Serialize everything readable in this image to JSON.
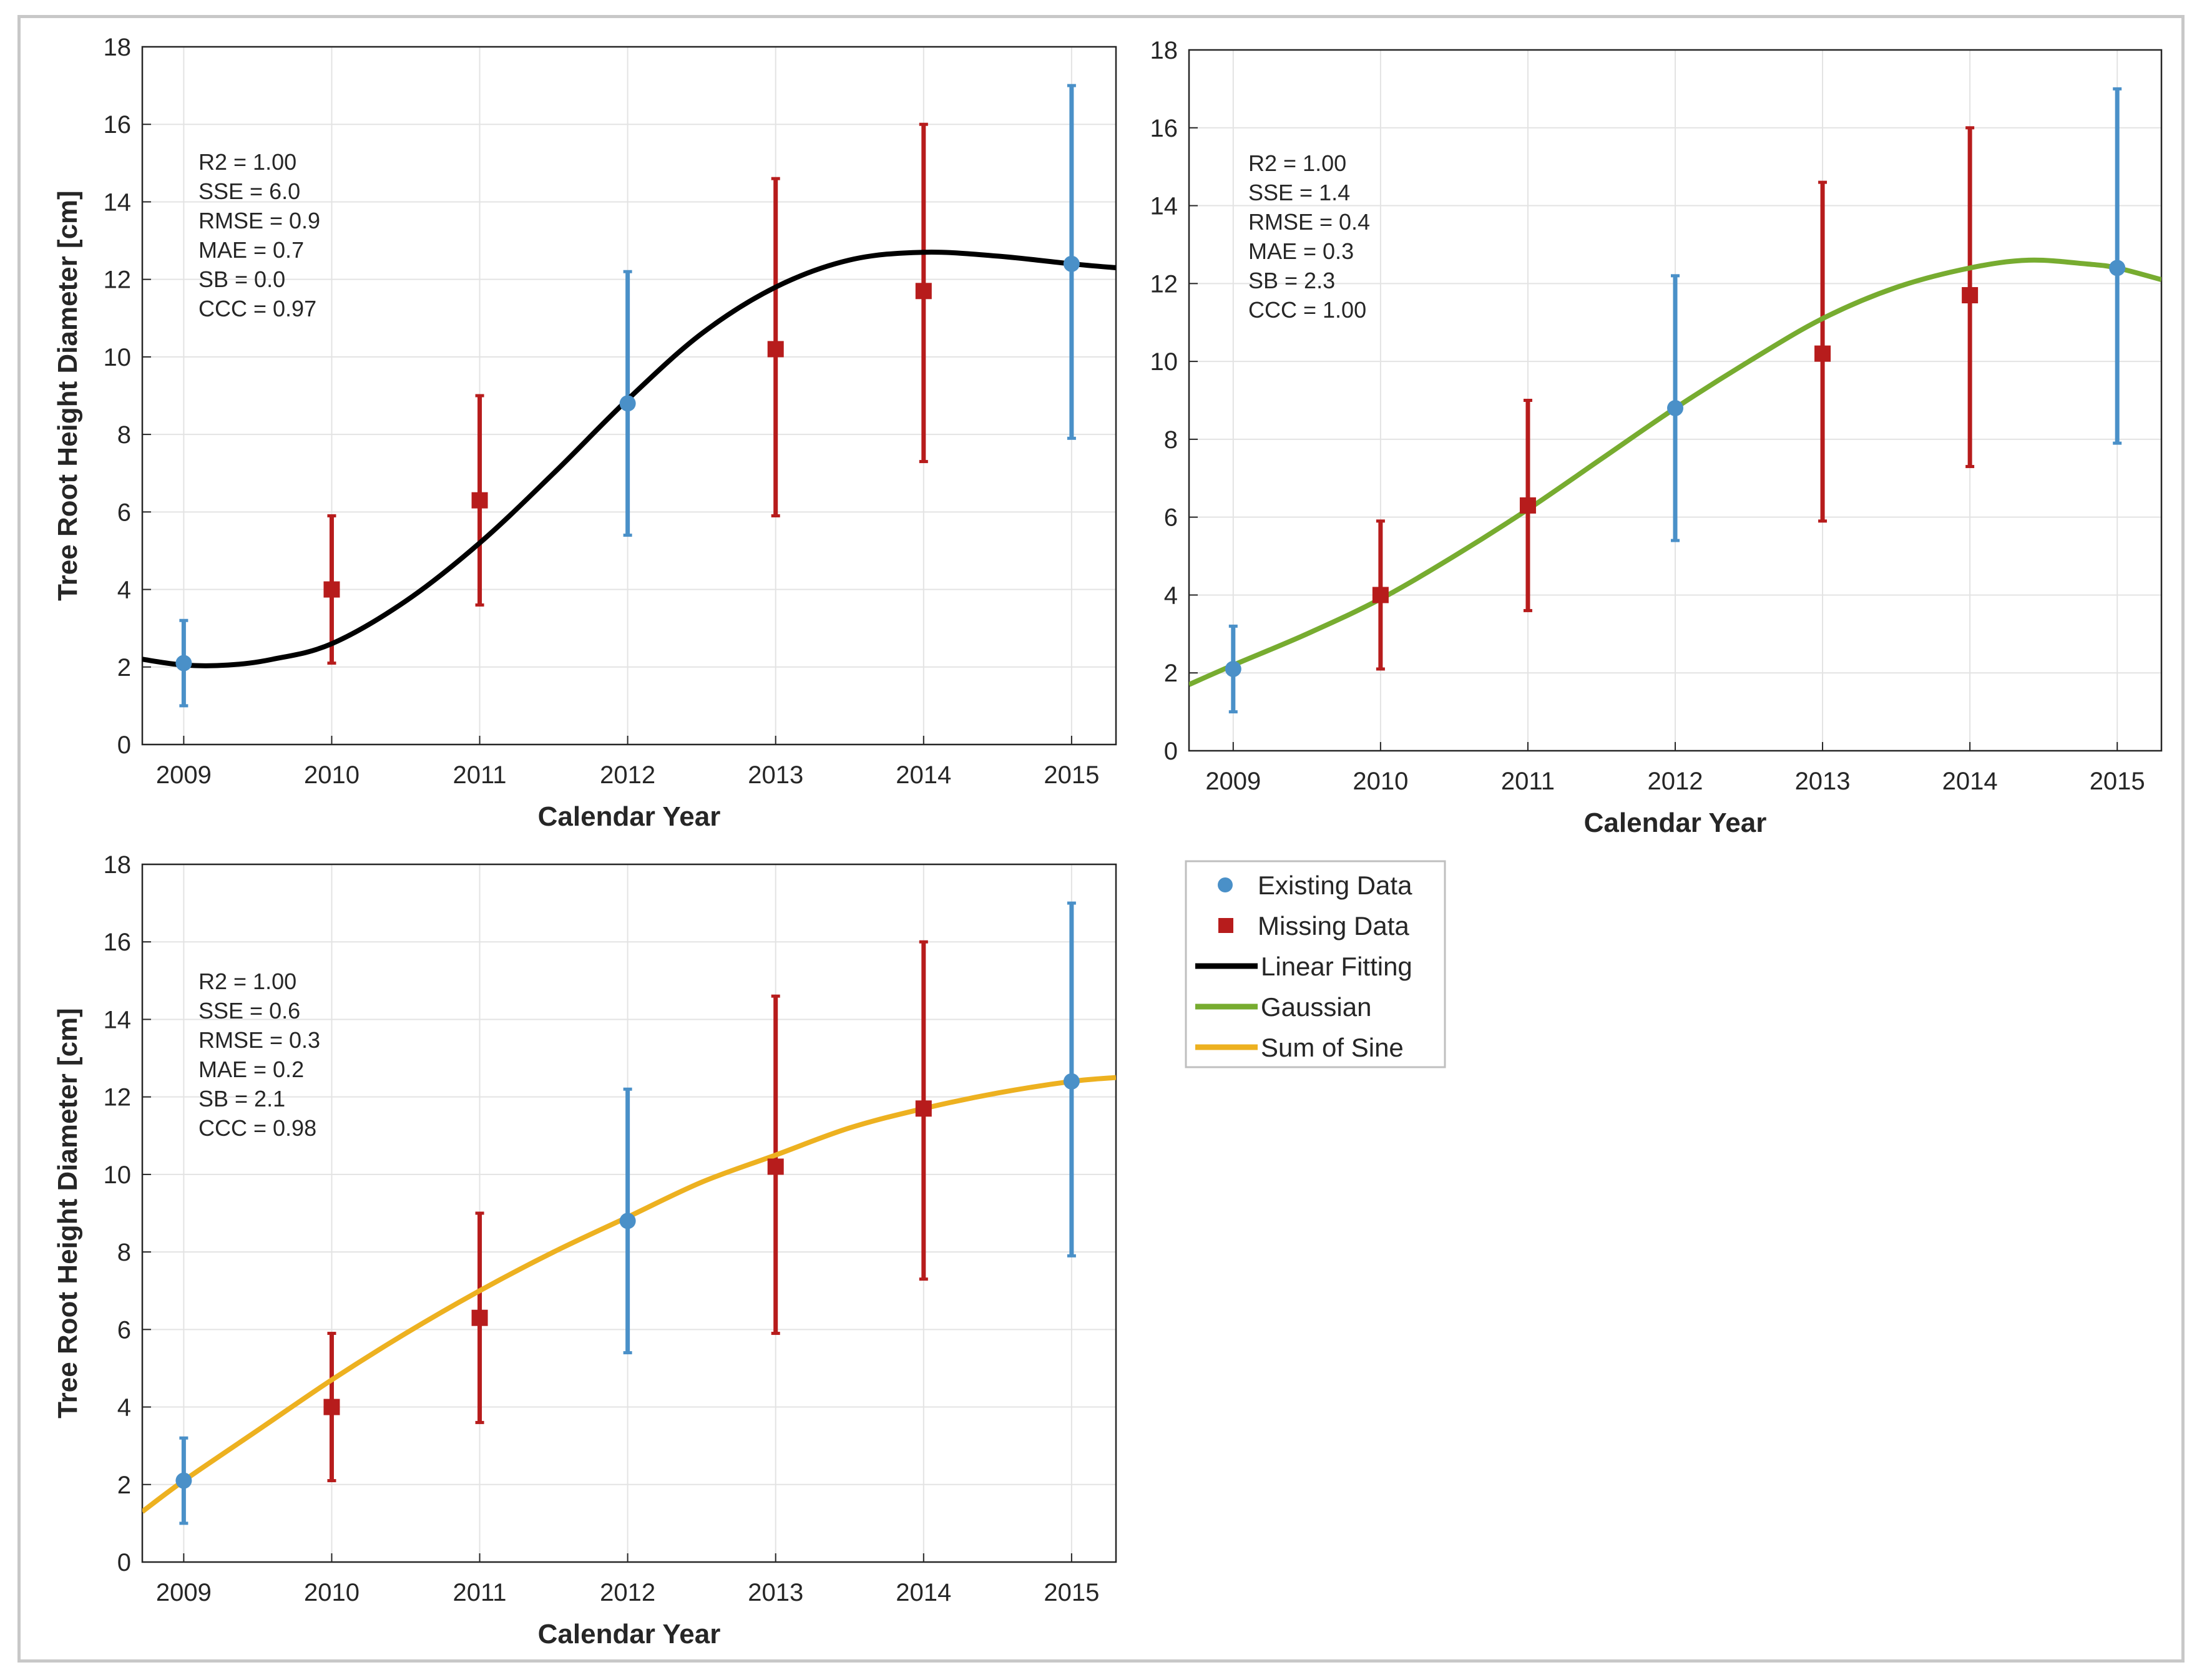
{
  "chart_data": [
    {
      "type": "scatter",
      "fit": "Linear Fitting",
      "fit_color": "#000000",
      "xlabel": "Calendar Year",
      "ylabel": "Tree Root Height Diameter [cm]",
      "xlim": [
        2008.72,
        2015.3
      ],
      "ylim": [
        0,
        18
      ],
      "x_ticks": [
        2009,
        2010,
        2011,
        2012,
        2013,
        2014,
        2015
      ],
      "y_ticks": [
        0,
        2,
        4,
        6,
        8,
        10,
        12,
        14,
        16,
        18
      ],
      "stats": [
        "R2 = 1.00",
        "SSE = 6.0",
        "RMSE = 0.9",
        "MAE = 0.7",
        "SB = 0.0",
        "CCC = 0.97"
      ],
      "existing": [
        {
          "x": 2009,
          "y": 2.1,
          "lo": 1.0,
          "hi": 3.2
        },
        {
          "x": 2012,
          "y": 8.8,
          "lo": 5.4,
          "hi": 12.2
        },
        {
          "x": 2015,
          "y": 12.4,
          "lo": 7.9,
          "hi": 17.0
        }
      ],
      "missing": [
        {
          "x": 2010,
          "y": 4.0,
          "lo": 2.1,
          "hi": 5.9
        },
        {
          "x": 2011,
          "y": 6.3,
          "lo": 3.6,
          "hi": 9.0
        },
        {
          "x": 2013,
          "y": 10.2,
          "lo": 5.9,
          "hi": 14.6
        },
        {
          "x": 2014,
          "y": 11.7,
          "lo": 7.3,
          "hi": 16.0
        }
      ],
      "curve": [
        [
          2008.72,
          2.2
        ],
        [
          2009,
          2.05
        ],
        [
          2009.3,
          2.05
        ],
        [
          2009.6,
          2.2
        ],
        [
          2010,
          2.6
        ],
        [
          2010.5,
          3.7
        ],
        [
          2011,
          5.2
        ],
        [
          2011.5,
          7.0
        ],
        [
          2012,
          8.9
        ],
        [
          2012.5,
          10.6
        ],
        [
          2013,
          11.8
        ],
        [
          2013.5,
          12.5
        ],
        [
          2014,
          12.7
        ],
        [
          2014.5,
          12.6
        ],
        [
          2015,
          12.4
        ],
        [
          2015.3,
          12.3
        ]
      ]
    },
    {
      "type": "scatter",
      "fit": "Gaussian",
      "fit_color": "#77ac30",
      "xlabel": "Calendar Year",
      "ylabel": "",
      "xlim": [
        2008.7,
        2015.3
      ],
      "ylim": [
        0,
        18
      ],
      "x_ticks": [
        2009,
        2010,
        2011,
        2012,
        2013,
        2014,
        2015
      ],
      "y_ticks": [
        0,
        2,
        4,
        6,
        8,
        10,
        12,
        14,
        16,
        18
      ],
      "stats": [
        "R2 = 1.00",
        "SSE = 1.4",
        "RMSE = 0.4",
        "MAE = 0.3",
        "SB = 2.3",
        "CCC = 1.00"
      ],
      "existing": [
        {
          "x": 2009,
          "y": 2.1,
          "lo": 1.0,
          "hi": 3.2
        },
        {
          "x": 2012,
          "y": 8.8,
          "lo": 5.4,
          "hi": 12.2
        },
        {
          "x": 2015,
          "y": 12.4,
          "lo": 7.9,
          "hi": 17.0
        }
      ],
      "missing": [
        {
          "x": 2010,
          "y": 4.0,
          "lo": 2.1,
          "hi": 5.9
        },
        {
          "x": 2011,
          "y": 6.3,
          "lo": 3.6,
          "hi": 9.0
        },
        {
          "x": 2013,
          "y": 10.2,
          "lo": 5.9,
          "hi": 14.6
        },
        {
          "x": 2014,
          "y": 11.7,
          "lo": 7.3,
          "hi": 16.0
        }
      ],
      "curve": [
        [
          2008.7,
          1.7
        ],
        [
          2009,
          2.2
        ],
        [
          2009.5,
          3.0
        ],
        [
          2010,
          3.9
        ],
        [
          2010.5,
          5.0
        ],
        [
          2011,
          6.2
        ],
        [
          2011.5,
          7.5
        ],
        [
          2012,
          8.8
        ],
        [
          2012.5,
          10.0
        ],
        [
          2013,
          11.1
        ],
        [
          2013.5,
          11.9
        ],
        [
          2014,
          12.4
        ],
        [
          2014.4,
          12.6
        ],
        [
          2014.8,
          12.5
        ],
        [
          2015,
          12.4
        ],
        [
          2015.3,
          12.1
        ]
      ]
    },
    {
      "type": "scatter",
      "fit": "Sum of Sine",
      "fit_color": "#edb120",
      "xlabel": "Calendar Year",
      "ylabel": "Tree Root Height Diameter [cm]",
      "xlim": [
        2008.72,
        2015.3
      ],
      "ylim": [
        0,
        18
      ],
      "x_ticks": [
        2009,
        2010,
        2011,
        2012,
        2013,
        2014,
        2015
      ],
      "y_ticks": [
        0,
        2,
        4,
        6,
        8,
        10,
        12,
        14,
        16,
        18
      ],
      "stats": [
        "R2 = 1.00",
        "SSE = 0.6",
        "RMSE = 0.3",
        "MAE = 0.2",
        "SB = 2.1",
        "CCC = 0.98"
      ],
      "existing": [
        {
          "x": 2009,
          "y": 2.1,
          "lo": 1.0,
          "hi": 3.2
        },
        {
          "x": 2012,
          "y": 8.8,
          "lo": 5.4,
          "hi": 12.2
        },
        {
          "x": 2015,
          "y": 12.4,
          "lo": 7.9,
          "hi": 17.0
        }
      ],
      "missing": [
        {
          "x": 2010,
          "y": 4.0,
          "lo": 2.1,
          "hi": 5.9
        },
        {
          "x": 2011,
          "y": 6.3,
          "lo": 3.6,
          "hi": 9.0
        },
        {
          "x": 2013,
          "y": 10.2,
          "lo": 5.9,
          "hi": 14.6
        },
        {
          "x": 2014,
          "y": 11.7,
          "lo": 7.3,
          "hi": 16.0
        }
      ],
      "curve": [
        [
          2008.72,
          1.3
        ],
        [
          2009,
          2.1
        ],
        [
          2009.5,
          3.4
        ],
        [
          2010,
          4.7
        ],
        [
          2010.5,
          5.9
        ],
        [
          2011,
          7.0
        ],
        [
          2011.5,
          8.0
        ],
        [
          2012,
          8.9
        ],
        [
          2012.5,
          9.8
        ],
        [
          2013,
          10.5
        ],
        [
          2013.5,
          11.2
        ],
        [
          2014,
          11.7
        ],
        [
          2014.5,
          12.1
        ],
        [
          2015,
          12.4
        ],
        [
          2015.3,
          12.5
        ]
      ]
    }
  ],
  "legend": {
    "items": [
      {
        "label": "Existing Data",
        "kind": "dot",
        "color": "#4a90c8"
      },
      {
        "label": "Missing Data",
        "kind": "square",
        "color": "#b71c1c"
      },
      {
        "label": "Linear Fitting",
        "kind": "line",
        "color": "#000000"
      },
      {
        "label": "Gaussian",
        "kind": "line",
        "color": "#77ac30"
      },
      {
        "label": "Sum of Sine",
        "kind": "line",
        "color": "#edb120"
      }
    ]
  },
  "colors": {
    "existing": "#4a90c8",
    "missing": "#b71c1c",
    "grid": "#e3e3e3",
    "axis": "#262626"
  }
}
